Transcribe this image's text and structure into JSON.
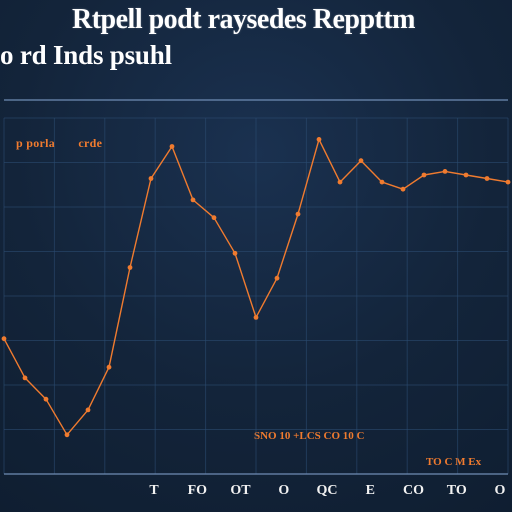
{
  "chart_data": {
    "type": "line",
    "title": "Rtpell podt raysedes Reppttm",
    "subtitle": "o rd Inds psuhl",
    "xlabel": "",
    "ylabel": "",
    "legend_entries": [
      "p porla",
      "crde"
    ],
    "legend_position": "top-left",
    "grid": true,
    "x_ticks": [
      "T",
      "FO",
      "OT",
      "O",
      "QC",
      "E",
      "CO",
      "TO",
      "O"
    ],
    "x_caption": "SNO 10 +LCS CO 10 C",
    "x_caption_2": "TO C M Ex",
    "x": [
      0,
      1,
      2,
      3,
      4,
      5,
      6,
      7,
      8,
      9,
      10,
      11,
      12,
      13,
      14,
      15,
      16,
      17,
      18,
      19,
      20,
      21,
      22,
      23,
      24
    ],
    "ylim": [
      0,
      100
    ],
    "series": [
      {
        "name": "",
        "values": [
          38,
          27,
          21,
          11,
          18,
          30,
          58,
          83,
          92,
          77,
          72,
          62,
          44,
          55,
          73,
          94,
          82,
          88,
          82,
          80,
          84,
          85,
          84,
          83,
          82
        ]
      }
    ]
  },
  "colors": {
    "background": "#13243a",
    "accent": "#f07b2f",
    "text": "#ffffff",
    "grid": "#2b4b70"
  }
}
